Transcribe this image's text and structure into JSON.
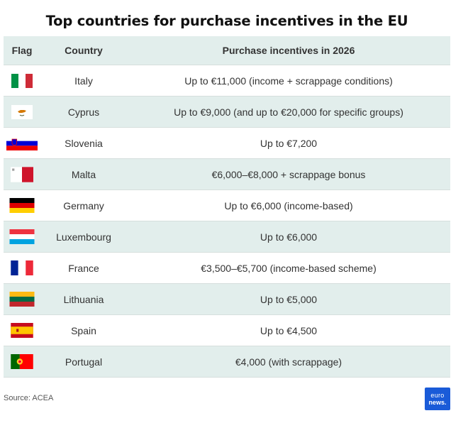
{
  "title": "Top countries for purchase incentives in the EU",
  "table": {
    "headers": {
      "flag": "Flag",
      "country": "Country",
      "incentive": "Purchase incentives in 2026"
    },
    "rows": [
      {
        "flag_icon": "italy-flag-icon",
        "country": "Italy",
        "incentive": "Up to €11,000 (income + scrappage conditions)"
      },
      {
        "flag_icon": "cyprus-flag-icon",
        "country": "Cyprus",
        "incentive": "Up to €9,000 (and up to €20,000 for specific groups)"
      },
      {
        "flag_icon": "slovenia-flag-icon",
        "country": "Slovenia",
        "incentive": "Up to €7,200"
      },
      {
        "flag_icon": "malta-flag-icon",
        "country": "Malta",
        "incentive": "€6,000–€8,000 + scrappage bonus"
      },
      {
        "flag_icon": "germany-flag-icon",
        "country": "Germany",
        "incentive": "Up to €6,000 (income-based)"
      },
      {
        "flag_icon": "luxembourg-flag-icon",
        "country": "Luxembourg",
        "incentive": "Up to €6,000"
      },
      {
        "flag_icon": "france-flag-icon",
        "country": "France",
        "incentive": "€3,500–€5,700 (income-based scheme)"
      },
      {
        "flag_icon": "lithuania-flag-icon",
        "country": "Lithuania",
        "incentive": "Up to €5,000"
      },
      {
        "flag_icon": "spain-flag-icon",
        "country": "Spain",
        "incentive": "Up to €4,500"
      },
      {
        "flag_icon": "portugal-flag-icon",
        "country": "Portugal",
        "incentive": "€4,000 (with scrappage)"
      }
    ]
  },
  "source": "Source: ACEA",
  "logo": {
    "line1": "euro",
    "line2": "news."
  },
  "colors": {
    "header_bg": "#e2eeec",
    "alt_row_bg": "#e2eeec",
    "logo_bg": "#1a5bd8"
  }
}
